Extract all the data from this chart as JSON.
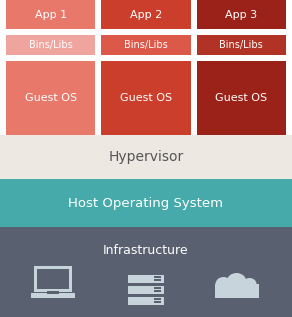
{
  "columns": [
    {
      "app_label": "App 1",
      "bins_label": "Bins/Libs",
      "guest_label": "Guest OS",
      "app_color": "#E8786A",
      "bins_color": "#F0A49E",
      "guest_color": "#E8786A"
    },
    {
      "app_label": "App 2",
      "bins_label": "Bins/Libs",
      "guest_label": "Guest OS",
      "app_color": "#CC3E2C",
      "bins_color": "#DC5848",
      "guest_color": "#CC3E2C"
    },
    {
      "app_label": "App 3",
      "bins_label": "Bins/Libs",
      "guest_label": "Guest OS",
      "app_color": "#9A2218",
      "bins_color": "#B03325",
      "guest_color": "#9A2218"
    }
  ],
  "bg_color": "#FFFFFF",
  "vm_bg_color": "#FFFFFF",
  "hypervisor_label": "Hypervisor",
  "hypervisor_color": "#EDE8E2",
  "hypervisor_text_color": "#555555",
  "host_os_label": "Host Operating System",
  "host_os_color": "#46AAAA",
  "host_os_text_color": "#FFFFFF",
  "infra_label": "Infrastructure",
  "infra_color": "#596070",
  "infra_text_color": "#FFFFFF",
  "col_text_color": "#FFFFFF",
  "icon_color": "#C8D4DC",
  "infra_icon_bg": "#596070"
}
